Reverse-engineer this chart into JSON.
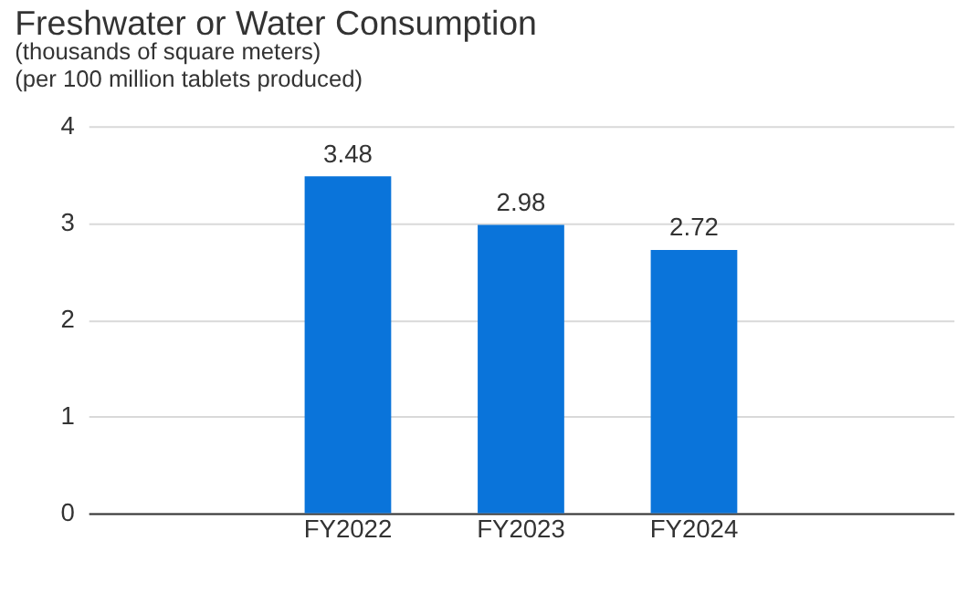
{
  "chart_data": {
    "type": "bar",
    "title": "Freshwater or Water Consumption",
    "subtitle": "(thousands of square meters)\n(per 100 million tablets produced)",
    "categories": [
      "FY2022",
      "FY2023",
      "FY2024"
    ],
    "values": [
      3.48,
      2.98,
      2.72
    ],
    "color": "#0a74da",
    "ylim": [
      0,
      4
    ],
    "yticks": [
      0,
      1,
      2,
      3,
      4
    ],
    "grid": "y",
    "data_labels": true
  }
}
